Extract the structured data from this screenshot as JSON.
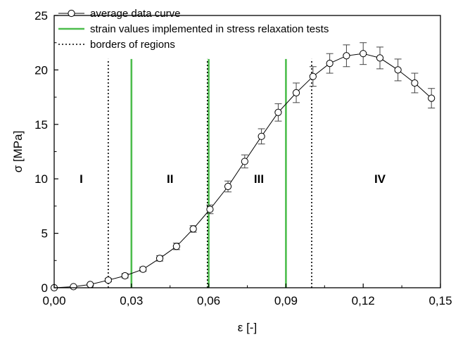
{
  "chart_data": {
    "type": "line",
    "xlabel": "ε [-]",
    "ylabel": "σ [MPa]",
    "xlim": [
      0,
      0.15
    ],
    "ylim": [
      0,
      25
    ],
    "x_ticks": [
      0,
      0.03,
      0.06,
      0.09,
      0.12,
      0.15
    ],
    "x_tick_labels": [
      "0,00",
      "0,03",
      "0,06",
      "0,09",
      "0,12",
      "0,15"
    ],
    "y_ticks": [
      0,
      5,
      10,
      15,
      20,
      25
    ],
    "y_tick_labels": [
      "0",
      "5",
      "10",
      "15",
      "20",
      "25"
    ],
    "grid": false,
    "legend_position": "top-left",
    "series": [
      {
        "name": "average data curve",
        "color": "#000000",
        "marker": "open-circle",
        "points": [
          {
            "x": 0.0,
            "y": 0.0,
            "err": 0.0
          },
          {
            "x": 0.0075,
            "y": 0.1,
            "err": 0.05
          },
          {
            "x": 0.014,
            "y": 0.3,
            "err": 0.1
          },
          {
            "x": 0.021,
            "y": 0.7,
            "err": 0.15
          },
          {
            "x": 0.0275,
            "y": 1.1,
            "err": 0.2
          },
          {
            "x": 0.0345,
            "y": 1.7,
            "err": 0.2
          },
          {
            "x": 0.041,
            "y": 2.7,
            "err": 0.25
          },
          {
            "x": 0.0475,
            "y": 3.8,
            "err": 0.3
          },
          {
            "x": 0.054,
            "y": 5.4,
            "err": 0.3
          },
          {
            "x": 0.0605,
            "y": 7.2,
            "err": 0.4
          },
          {
            "x": 0.0675,
            "y": 9.3,
            "err": 0.5
          },
          {
            "x": 0.074,
            "y": 11.6,
            "err": 0.6
          },
          {
            "x": 0.0805,
            "y": 13.9,
            "err": 0.7
          },
          {
            "x": 0.087,
            "y": 16.1,
            "err": 0.8
          },
          {
            "x": 0.094,
            "y": 17.9,
            "err": 0.9
          },
          {
            "x": 0.1005,
            "y": 19.4,
            "err": 0.9
          },
          {
            "x": 0.107,
            "y": 20.6,
            "err": 0.9
          },
          {
            "x": 0.1135,
            "y": 21.3,
            "err": 1.0
          },
          {
            "x": 0.12,
            "y": 21.5,
            "err": 1.0
          },
          {
            "x": 0.1265,
            "y": 21.1,
            "err": 1.0
          },
          {
            "x": 0.1335,
            "y": 20.0,
            "err": 1.0
          },
          {
            "x": 0.14,
            "y": 18.8,
            "err": 0.9
          },
          {
            "x": 0.1465,
            "y": 17.4,
            "err": 0.9
          }
        ]
      }
    ],
    "vertical_lines": [
      {
        "series": "strain values implemented in stress relaxation tests",
        "color": "#4dbd4d",
        "style": "solid",
        "x": [
          0.03,
          0.06,
          0.09
        ],
        "y_top": 21.0
      },
      {
        "series": "borders of regions",
        "color": "#000000",
        "style": "dotted",
        "x": [
          0.021,
          0.0595,
          0.1
        ],
        "y_top": 21.0
      }
    ],
    "region_labels": [
      {
        "text": "I",
        "x": 0.0105,
        "y": 10.0
      },
      {
        "text": "II",
        "x": 0.045,
        "y": 10.0
      },
      {
        "text": "III",
        "x": 0.0795,
        "y": 10.0
      },
      {
        "text": "IV",
        "x": 0.1265,
        "y": 10.0
      }
    ],
    "legend": [
      {
        "label": "average data curve",
        "style": "line-circle"
      },
      {
        "label": "strain values implemented in stress relaxation tests",
        "style": "green-solid"
      },
      {
        "label": "borders of regions",
        "style": "dotted"
      }
    ]
  }
}
